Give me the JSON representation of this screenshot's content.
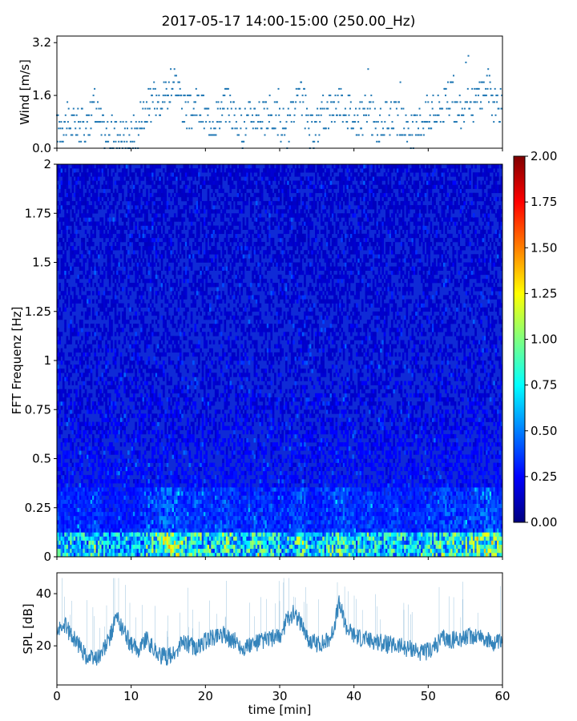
{
  "chart_data": [
    {
      "type": "scatter",
      "title": "2017-05-17 14:00-15:00 (250.00_Hz)",
      "ylabel": "Wind [m/s]",
      "xlabel": "",
      "xlim": [
        0,
        60
      ],
      "ylim": [
        0.0,
        3.4
      ],
      "yticks": [
        "0.0",
        "1.6",
        "3.2"
      ],
      "marker_color": "#1f77b4",
      "anchors_x": [
        0,
        1,
        2,
        3,
        4,
        5,
        6,
        7,
        8,
        9,
        10,
        11,
        12,
        13,
        14,
        15,
        16,
        17,
        18,
        19,
        20,
        21,
        22,
        23,
        24,
        25,
        26,
        27,
        28,
        29,
        30,
        31,
        32,
        33,
        34,
        35,
        36,
        37,
        38,
        39,
        40,
        41,
        42,
        43,
        44,
        45,
        46,
        47,
        48,
        49,
        50,
        51,
        52,
        53,
        54,
        55,
        56,
        57,
        58,
        59,
        60
      ],
      "anchors_y": [
        0.6,
        0.8,
        0.7,
        0.8,
        0.6,
        1.3,
        0.6,
        0.3,
        0.5,
        0.4,
        0.4,
        0.6,
        1.2,
        1.3,
        1.6,
        1.8,
        2.1,
        1.2,
        1.0,
        1.3,
        1.0,
        0.8,
        1.2,
        1.4,
        0.9,
        0.6,
        1.0,
        1.1,
        0.9,
        1.0,
        0.8,
        0.6,
        1.2,
        1.6,
        0.4,
        0.7,
        1.0,
        1.2,
        1.4,
        1.3,
        0.8,
        0.9,
        1.2,
        0.6,
        0.8,
        1.0,
        0.9,
        0.6,
        0.5,
        0.8,
        1.1,
        1.0,
        1.3,
        1.5,
        1.1,
        1.2,
        1.4,
        1.6,
        2.0,
        1.3,
        1.2
      ]
    },
    {
      "type": "heatmap",
      "ylabel": "FFT Frequenz [Hz]",
      "xlim": [
        0,
        60
      ],
      "ylim": [
        0,
        2
      ],
      "yticks": [
        "0",
        "0.25",
        "0.5",
        "0.75",
        "1",
        "1.25",
        "1.5",
        "1.75",
        "2"
      ],
      "colorbar_range": [
        0.0,
        2.0
      ],
      "colorbar_ticks": [
        "0.00",
        "0.25",
        "0.50",
        "0.75",
        "1.00",
        "1.25",
        "1.50",
        "1.75",
        "2.00"
      ],
      "colormap": "jet",
      "colormap_colors": [
        "#00007f",
        "#0000ff",
        "#007fff",
        "#00ffff",
        "#7fff7f",
        "#ffff00",
        "#ff7f00",
        "#ff0000",
        "#7f0000"
      ],
      "typical_level": 0.2,
      "low_frequency_level": 1.0
    },
    {
      "type": "line",
      "ylabel": "SPL [dB]",
      "xlabel": "time [min]",
      "xlim": [
        0,
        60
      ],
      "ylim": [
        5,
        48
      ],
      "yticks": [
        "20",
        "40"
      ],
      "xticks": [
        "0",
        "10",
        "20",
        "30",
        "40",
        "50",
        "60"
      ],
      "line_color": "#1f77b4",
      "anchors_x": [
        0,
        1,
        2,
        3,
        4,
        5,
        6,
        7,
        8,
        9,
        10,
        11,
        12,
        13,
        14,
        15,
        16,
        17,
        18,
        19,
        20,
        21,
        22,
        23,
        24,
        25,
        26,
        27,
        28,
        29,
        30,
        31,
        32,
        33,
        34,
        35,
        36,
        37,
        38,
        39,
        40,
        41,
        42,
        43,
        44,
        45,
        46,
        47,
        48,
        49,
        50,
        51,
        52,
        53,
        54,
        55,
        56,
        57,
        58,
        59,
        60
      ],
      "anchors_y": [
        25,
        28,
        24,
        20,
        16,
        15,
        17,
        22,
        31,
        26,
        20,
        19,
        23,
        19,
        16,
        16,
        17,
        22,
        20,
        19,
        22,
        23,
        25,
        23,
        22,
        19,
        20,
        21,
        22,
        23,
        23,
        30,
        33,
        28,
        22,
        21,
        21,
        24,
        36,
        27,
        24,
        23,
        22,
        22,
        21,
        20,
        20,
        19,
        19,
        17,
        18,
        20,
        23,
        22,
        23,
        23,
        24,
        24,
        22,
        21,
        21
      ]
    }
  ]
}
